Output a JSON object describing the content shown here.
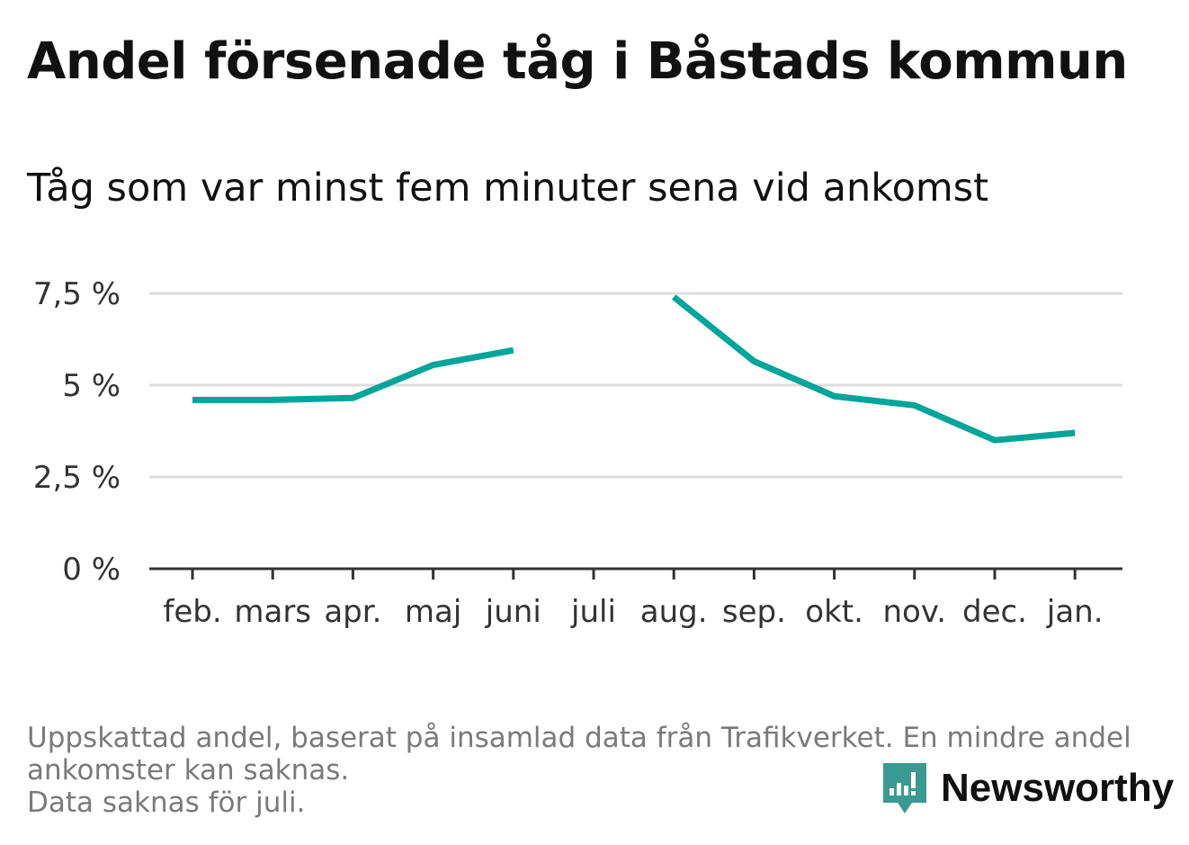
{
  "title": "Andel försenade tåg i Båstads kommun",
  "subtitle": "Tåg som var minst fem minuter sena vid ankomst",
  "footnote": {
    "line1": "Uppskattad andel, baserat på insamlad data från Trafikverket. En mindre andel",
    "line2": "ankomster kan saknas.",
    "line3": "Data saknas för juli."
  },
  "brand": {
    "name": "Newsworthy",
    "icon": "newsworthy-logo-icon",
    "color": "#3a9a92"
  },
  "colors": {
    "line": "#00a59a",
    "grid": "#dddddd",
    "axis": "#333333"
  },
  "chart_data": {
    "type": "line",
    "categories": [
      "feb.",
      "mars",
      "apr.",
      "maj",
      "juni",
      "juli",
      "aug.",
      "sep.",
      "okt.",
      "nov.",
      "dec.",
      "jan."
    ],
    "series": [
      {
        "values": [
          4.6,
          4.6,
          4.65,
          5.55,
          5.95,
          null,
          7.4,
          5.65,
          4.7,
          4.45,
          3.5,
          3.7
        ]
      }
    ],
    "y_ticks": [
      {
        "value": 0,
        "label": "0 %"
      },
      {
        "value": 2.5,
        "label": "2,5 %"
      },
      {
        "value": 5,
        "label": "5 %"
      },
      {
        "value": 7.5,
        "label": "7,5 %"
      }
    ],
    "ylim": [
      0,
      7.5
    ],
    "grid": true,
    "legend": "none"
  }
}
